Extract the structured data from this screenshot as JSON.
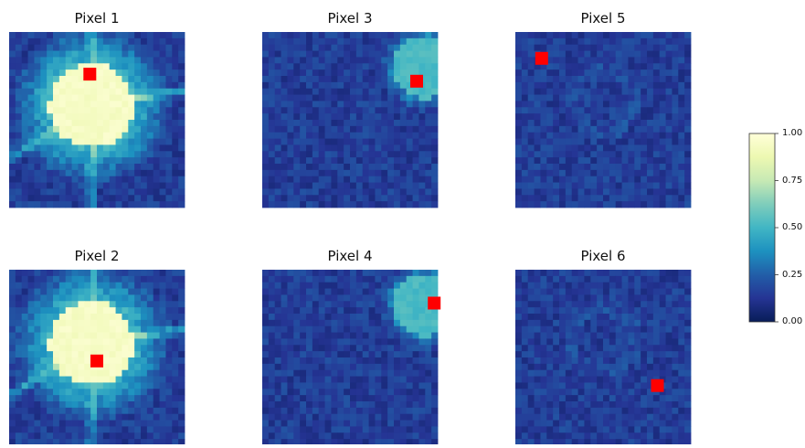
{
  "chart_data": {
    "type": "heatmap",
    "colormap": "YlGnBu_r",
    "grid": false,
    "panels": [
      {
        "title": "Pixel 1",
        "center": [
          0.47,
          0.42
        ],
        "blob_radius": 0.24,
        "blob_value": 0.97,
        "halo": "rays",
        "marker": [
          0.46,
          0.24
        ]
      },
      {
        "title": "Pixel 3",
        "center": [
          0.93,
          0.2
        ],
        "blob_radius": 0.18,
        "blob_value": 0.55,
        "halo": "none",
        "marker": [
          0.88,
          0.28
        ]
      },
      {
        "title": "Pixel 5",
        "center": [
          0.5,
          0.4
        ],
        "blob_radius": 0.0,
        "blob_value": 0.12,
        "halo": "none",
        "marker": [
          0.15,
          0.15
        ]
      },
      {
        "title": "Pixel 2",
        "center": [
          0.47,
          0.42
        ],
        "blob_radius": 0.24,
        "blob_value": 0.97,
        "halo": "rays",
        "marker": [
          0.5,
          0.52
        ]
      },
      {
        "title": "Pixel 4",
        "center": [
          0.93,
          0.2
        ],
        "blob_radius": 0.18,
        "blob_value": 0.55,
        "halo": "none",
        "marker": [
          0.98,
          0.19
        ]
      },
      {
        "title": "Pixel 6",
        "center": [
          0.5,
          0.4
        ],
        "blob_radius": 0.0,
        "blob_value": 0.12,
        "halo": "none",
        "marker": [
          0.81,
          0.66
        ]
      }
    ],
    "colorbar": {
      "min": 0.0,
      "max": 1.0,
      "ticks": [
        0.0,
        0.25,
        0.5,
        0.75,
        1.0
      ],
      "tick_labels": [
        "0.00",
        "0.25",
        "0.50",
        "0.75",
        "1.00"
      ]
    },
    "marker_color": "#ff0000"
  }
}
